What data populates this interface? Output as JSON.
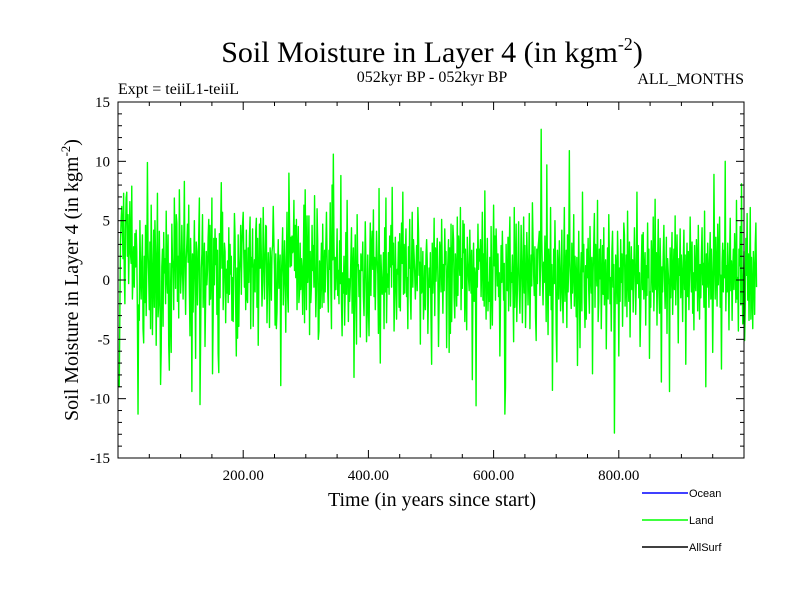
{
  "chart_data": {
    "type": "line",
    "title": "Soil Moisture in Layer 4 (in kgm",
    "title_sup": "-2",
    "title_close": ")",
    "subtitle_left": "Expt = teiiL1-teiiL",
    "subtitle_center": "052kyr BP - 052kyr BP",
    "subtitle_right": "ALL_MONTHS",
    "xlabel": "Time (in years since start)",
    "ylabel": "Soil Moisture in Layer 4 (in kgm",
    "ylabel_sup": "-2",
    "ylabel_close": ")",
    "xlim": [
      0,
      1000
    ],
    "ylim": [
      -15,
      15
    ],
    "x_ticks": [
      {
        "value": 200,
        "label": "200.00"
      },
      {
        "value": 400,
        "label": "400.00"
      },
      {
        "value": 600,
        "label": "600.00"
      },
      {
        "value": 800,
        "label": "800.00"
      }
    ],
    "y_ticks": [
      {
        "value": 15,
        "label": "15"
      },
      {
        "value": 10,
        "label": "10"
      },
      {
        "value": 5,
        "label": "5"
      },
      {
        "value": 0,
        "label": "0"
      },
      {
        "value": -5,
        "label": "-5"
      },
      {
        "value": -10,
        "label": "-10"
      },
      {
        "value": -15,
        "label": "-15"
      }
    ],
    "legend_placement": "bottom-right",
    "series": [
      {
        "name": "Ocean",
        "color": "#0000ff",
        "values": []
      },
      {
        "name": "Land",
        "color": "#00ff00",
        "x_start": 1,
        "x_step": 1,
        "values": [
          -8.4,
          -9.0,
          -2.5,
          3.2,
          5.1,
          6.2,
          4.5,
          1.8,
          7.3,
          0.5,
          -2.0,
          4.2,
          6.9,
          7.4,
          2.0,
          5.5,
          -0.3,
          3.1,
          6.6,
          2.2,
          1.4,
          7.9,
          -1.6,
          0.4,
          2.8,
          -0.6,
          3.9,
          1.1,
          4.2,
          2.4,
          -3.1,
          -11.3,
          -2.1,
          -3.4,
          5.0,
          0.6,
          -1.6,
          1.5,
          3.8,
          -4.1,
          -5.3,
          2.0,
          -1.9,
          4.6,
          -3.0,
          1.1,
          9.9,
          2.6,
          0.4,
          -2.5,
          3.2,
          -4.1,
          6.3,
          1.7,
          -4.6,
          0.3,
          4.2,
          -2.3,
          5.0,
          2.1,
          -5.5,
          1.0,
          7.3,
          -3.1,
          -2.1,
          4.1,
          -0.1,
          -8.8,
          -6.1,
          1.1,
          2.6,
          -3.9,
          4.0,
          0.6,
          1.8,
          -2.0,
          5.8,
          0.3,
          -1.1,
          3.8,
          -5.5,
          -7.6,
          1.4,
          -3.1,
          -6.1,
          4.7,
          1.7,
          1.0,
          -2.5,
          6.9,
          2.9,
          -0.7,
          5.5,
          4.8,
          -1.8,
          2.0,
          -3.2,
          7.6,
          3.1,
          -1.1,
          0.5,
          4.6,
          1.2,
          -1.6,
          2.5,
          8.3,
          0.6,
          -2.9,
          1.8,
          3.1,
          4.7,
          1.5,
          6.3,
          -0.7,
          -4.7,
          3.5,
          0.8,
          -9.4,
          2.2,
          -2.7,
          1.1,
          5.0,
          0.1,
          -6.6,
          3.2,
          2.4,
          -2.1,
          0.5,
          3.9,
          6.9,
          -10.5,
          -4.8,
          1.0,
          2.2,
          5.5,
          -2.3,
          0.8,
          3.1,
          -5.6,
          -1.6,
          2.4,
          -0.4,
          0.9,
          3.6,
          5.1,
          -2.1,
          4.6,
          -1.6,
          0.9,
          6.9,
          -7.9,
          -3.1,
          3.5,
          -0.4,
          4.3,
          1.3,
          3.5,
          -2.9,
          2.5,
          -6.2,
          -7.8,
          3.9,
          -1.5,
          4.6,
          8.2,
          1.0,
          5.7,
          -2.5,
          -0.2,
          3.1,
          2.4,
          -3.6,
          0.9,
          -1.1,
          1.6,
          -1.9,
          4.4,
          -1.2,
          3.0,
          0.5,
          2.0,
          -3.4,
          0.2,
          -3.5,
          1.2,
          5.6,
          3.7,
          -2.3,
          -6.4,
          1.0,
          -4.9,
          3.8,
          -3.9,
          0.6,
          2.1,
          4.6,
          -1.2,
          3.0,
          4.7,
          5.7,
          1.8,
          -0.6,
          2.5,
          -2.5,
          4.2,
          -1.5,
          -1.9,
          2.7,
          -0.2,
          3.7,
          5.3,
          -4.1,
          1.9,
          1.1,
          4.3,
          -3.9,
          0.6,
          1.7,
          -1.0,
          4.1,
          5.2,
          -2.3,
          3.5,
          -5.5,
          -0.2,
          4.7,
          1.0,
          5.2,
          1.9,
          -2.2,
          -0.2,
          6.1,
          2.2,
          -1.6,
          1.4,
          4.6,
          4.5,
          -3.6,
          -0.3,
          2.3,
          0.6,
          -4.0,
          2.7,
          1.4,
          -1.7,
          2.4,
          2.9,
          6.2,
          3.3,
          0.8,
          -3.8,
          2.2,
          -4.1,
          -2.7,
          1.2,
          3.4,
          -0.7,
          0.3,
          2.1,
          -8.9,
          0.2,
          2.1,
          4.4,
          -2.1,
          -0.1,
          3.3,
          0.3,
          -4.4,
          1.7,
          5.7,
          -1.3,
          -2.7,
          9.0,
          4.8,
          1.1,
          3.6,
          1.2,
          3.7,
          2.3,
          2.5,
          6.7,
          0.8,
          4.6,
          0.2,
          5.1,
          -2.5,
          2.3,
          4.5,
          -1.9,
          -1.0,
          3.1,
          -0.8,
          1.8,
          0.8,
          -2.9,
          1.6,
          6.3,
          -3.6,
          7.6,
          2.5,
          -2.5,
          5.4,
          -0.2,
          1.4,
          5.4,
          -4.6,
          2.4,
          -1.9,
          -0.5,
          4.6,
          0.8,
          2.9,
          -0.6,
          7.1,
          1.1,
          -3.1,
          -0.8,
          6.0,
          3.3,
          -5.0,
          -4.3,
          1.6,
          -2.4,
          0.6,
          3.1,
          -2.3,
          4.7,
          0.4,
          -1.9,
          2.5,
          -1.0,
          2.9,
          5.7,
          2.0,
          -0.8,
          -2.7,
          2.5,
          0.9,
          6.5,
          -0.6,
          -4.1,
          8.0,
          1.7,
          10.6,
          3.2,
          -1.6,
          1.9,
          -0.8,
          1.1,
          4.3,
          -1.3,
          0.8,
          -2.0,
          3.3,
          -0.3,
          8.8,
          -1.9,
          -4.7,
          0.6,
          -1.1,
          2.0,
          -3.8,
          -0.8,
          4.0,
          -1.2,
          6.7,
          0.8,
          -3.5,
          0.1,
          -1.8,
          -0.5,
          1.9,
          4.4,
          -2.8,
          0.6,
          2.7,
          -8.2,
          0.2,
          3.8,
          -1.8,
          -5.4,
          5.5,
          1.2,
          1.3,
          -1.4,
          0.8,
          -4.8,
          2.2,
          1.5,
          0.8,
          3.2,
          -1.4,
          -3.0,
          0.3,
          4.9,
          1.6,
          -5.2,
          -3.0,
          2.1,
          -2.0,
          -4.7,
          0.9,
          4.8,
          -1.3,
          2.8,
          4.1,
          0.9,
          5.9,
          -1.4,
          1.9,
          -2.5,
          0.8,
          4.1,
          1.8,
          0.5,
          -4.5,
          7.7,
          -2.3,
          -7.0,
          2.1,
          0.3,
          -1.2,
          -0.7,
          2.3,
          -4.1,
          4.4,
          -1.0,
          6.9,
          -3.6,
          0.5,
          -0.6,
          2.3,
          -1.2,
          3.7,
          1.1,
          4.6,
          -0.6,
          7.8,
          1.3,
          3.1,
          -4.3,
          -1.1,
          3.6,
          -0.2,
          -3.3,
          0.9,
          0.5,
          3.2,
          -2.3,
          3.9,
          -2.6,
          1.4,
          4.8,
          1.4,
          7.4,
          -1.2,
          3.0,
          -1.1,
          2.0,
          4.3,
          -1.4,
          0.2,
          -4.1,
          2.8,
          1.0,
          5.1,
          -1.3,
          -3.3,
          1.4,
          5.7,
          -0.6,
          3.4,
          2.1,
          0.5,
          -1.6,
          0.7,
          2.9,
          -0.9,
          6.1,
          4.2,
          0.4,
          1.5,
          -5.4,
          2.7,
          -1.1,
          -0.8,
          2.4,
          -3.3,
          -1.6,
          1.2,
          -2.5,
          2.1,
          3.4,
          1.6,
          -4.5,
          -1.0,
          1.0,
          -0.6,
          2.3,
          -3.2,
          -7.1,
          3.1,
          -1.1,
          0.8,
          5.2,
          -3.0,
          2.7,
          -0.1,
          2.1,
          3.5,
          0.2,
          -5.6,
          -1.8,
          3.2,
          2.5,
          -1.0,
          5.1,
          0.9,
          -2.8,
          1.3,
          -0.9,
          4.3,
          1.3,
          2.4,
          -5.7,
          0.1,
          1.6,
          3.4,
          -6.1,
          2.7,
          -4.5,
          4.7,
          -3.5,
          1.2,
          4.6,
          3.4,
          -1.5,
          -3.2,
          2.2,
          0.7,
          -2.2,
          5.3,
          -1.3,
          3.7,
          2.1,
          0.4,
          6.1,
          -2.5,
          1.8,
          -0.7,
          5.0,
          2.3,
          4.7,
          -3.5,
          2.6,
          -1.1,
          -4.2,
          3.6,
          1.6,
          0.1,
          -0.9,
          4.2,
          0.8,
          -1.1,
          2.5,
          -8.4,
          -0.3,
          3.1,
          -1.8,
          1.0,
          0.4,
          -10.6,
          2.6,
          -0.6,
          4.7,
          0.9,
          2.6,
          1.6,
          3.4,
          -1.4,
          1.3,
          5.7,
          -1.7,
          2.2,
          -2.2,
          7.5,
          1.2,
          -3.3,
          0.9,
          3.5,
          -2.6,
          -0.2,
          -1.8,
          1.9,
          -4.1,
          4.5,
          -0.7,
          -3.8,
          1.0,
          6.3,
          1.2,
          3.7,
          -1.7,
          4.3,
          2.1,
          -0.5,
          2.2,
          -1.4,
          0.6,
          -6.4,
          -1.7,
          2.9,
          -0.2,
          4.1,
          0.9,
          -1.7,
          1.4,
          -11.3,
          -9.0,
          3.0,
          -0.8,
          -0.9,
          3.6,
          -2.6,
          2.8,
          5.3,
          -2.2,
          0.6,
          -0.2,
          2.1,
          -1.0,
          -5.2,
          6.1,
          -2.3,
          0.3,
          4.7,
          -3.5,
          -0.7,
          1.6,
          4.9,
          -0.9,
          -2.8,
          0.3,
          4.6,
          1.1,
          -3.6,
          1.1,
          5.3,
          -1.1,
          2.9,
          -4.0,
          -0.9,
          4.0,
          1.6,
          -2.1,
          0.7,
          5.6,
          -4.1,
          -0.2,
          2.1,
          -0.5,
          6.5,
          3.4,
          0.4,
          -1.3,
          2.8,
          -3.1,
          -5.1,
          2.6,
          -0.3,
          2.7,
          3.3,
          4.1,
          -1.3,
          1.2,
          12.7,
          3.5,
          0.3,
          -2.1,
          1.5,
          -0.2,
          3.7,
          1.1,
          -3.5,
          9.7,
          0.1,
          -4.6,
          2.6,
          0.2,
          -1.3,
          6.1,
          -2.5,
          1.3,
          -9.3,
          -1.2,
          2.6,
          -0.3,
          5.0,
          1.1,
          -4.4,
          -6.9,
          2.5,
          0.8,
          -1.6,
          3.3,
          1.1,
          -2.6,
          -0.3,
          4.2,
          -1.5,
          -3.6,
          1.2,
          6.1,
          -1.8,
          0.5,
          2.5,
          -4.0,
          3.8,
          -1.0,
          1.4,
          10.9,
          1.7,
          -0.8,
          -2.4,
          3.1,
          -1.1,
          0.7,
          5.5,
          -2.2,
          2.0,
          0.3,
          -3.1,
          1.9,
          -7.2,
          -1.0,
          4.1,
          -0.7,
          -5.7,
          0.5,
          2.3,
          -2.6,
          7.4,
          0.7,
          3.0,
          -1.6,
          -4.0,
          1.2,
          -3.3,
          2.6,
          0.2,
          3.5,
          -0.9,
          -2.8,
          4.5,
          0.3,
          -1.1,
          1.9,
          -7.9,
          0.6,
          3.1,
          5.6,
          -2.3,
          3.0,
          1.0,
          -0.5,
          6.7,
          -3.5,
          -1.8,
          2.6,
          0.1,
          3.4,
          -4.1,
          -0.3,
          2.9,
          -1.2,
          4.4,
          -2.1,
          0.9,
          1.7,
          -5.8,
          -0.8,
          2.7,
          -1.6,
          5.5,
          1.7,
          -2.0,
          0.2,
          -4.3,
          2.4,
          4.1,
          -0.6,
          1.3,
          -12.9,
          -3.4,
          2.1,
          0.8,
          -2.0,
          4.1,
          1.5,
          -6.4,
          1.0,
          -1.8,
          3.4,
          -0.2,
          2.2,
          -3.9,
          0.5,
          4.8,
          3.8,
          -2.2,
          -0.4,
          2.1,
          -3.1,
          5.8,
          0.1,
          -1.8,
          3.2,
          -4.8,
          0.6,
          2.8,
          -0.8,
          1.7,
          -2.7,
          0.8,
          4.4,
          1.0,
          -2.9,
          0.1,
          7.4,
          -0.3,
          2.9,
          -1.5,
          0.6,
          -5.6,
          -2.6,
          1.3,
          3.8,
          -0.8,
          4.0,
          -1.6,
          0.7,
          2.3,
          -3.8,
          1.2,
          -1.3,
          4.8,
          0.2,
          2.6,
          -6.6,
          -1.0,
          -2.3,
          3.3,
          1.1,
          -1.0,
          5.3,
          -2.6,
          0.3,
          6.8,
          -0.8,
          2.3,
          -3.8,
          1.1,
          5.1,
          -0.9,
          -2.8,
          3.5,
          0.4,
          -8.6,
          1.1,
          -1.0,
          2.2,
          4.6,
          0.1,
          -2.4,
          0.4,
          3.6,
          -4.5,
          1.8,
          0.6,
          -0.4,
          -9.4,
          2.7,
          -1.5,
          1.0,
          4.0,
          -2.9,
          0.2,
          2.6,
          -0.8,
          5.4,
          -2.1,
          1.1,
          3.8,
          -0.2,
          -5.3,
          1.8,
          0.4,
          4.3,
          -1.5,
          2.1,
          0.3,
          -3.5,
          1.5,
          4.2,
          -0.8,
          2.1,
          -7.1,
          0.8,
          3.1,
          -1.4,
          2.4,
          -2.5,
          0.9,
          5.3,
          1.3,
          -1.0,
          3.2,
          -2.8,
          0.6,
          -4.2,
          2.9,
          0.1,
          -0.9,
          3.4,
          1.8,
          -2.6,
          4.6,
          0.2,
          -3.3,
          1.3,
          -1.5,
          2.2,
          4.4,
          -0.4,
          1.4,
          -2.3,
          5.8,
          -1.1,
          -9.0,
          2.2,
          -0.6,
          3.1,
          0.6,
          -2.3,
          1.7,
          4.0,
          -1.6,
          2.6,
          0.5,
          -6.1,
          -0.6,
          8.9,
          1.6,
          -1.6,
          3.6,
          0.6,
          -2.2,
          4.7,
          -0.4,
          1.7,
          5.3,
          -2.3,
          0.4,
          -7.5,
          1.5,
          3.1,
          -1.0,
          2.5,
          0.2,
          10.0,
          -2.6,
          1.2,
          -1.0,
          3.1,
          0.3,
          -4.2,
          2.0,
          5.2,
          -0.9,
          1.6,
          -3.4,
          0.7,
          2.6,
          -0.8,
          3.9,
          1.3,
          -1.9,
          6.7,
          -1.6,
          0.2,
          -4.3,
          2.6,
          1.2,
          4.5,
          -2.1,
          8.1,
          0.7,
          -3.7,
          -0.7,
          2.4,
          -5.1,
          -2.5,
          3.5,
          0.4,
          5.6,
          -1.7,
          2.2,
          -3.4,
          0.8,
          6.1,
          -3.3,
          1.9,
          -1.1,
          -4.1,
          2.4,
          0.5,
          -2.9,
          3.0,
          4.8,
          -0.6
        ]
      },
      {
        "name": "AllSurf",
        "color": "#000000",
        "values": []
      }
    ]
  }
}
